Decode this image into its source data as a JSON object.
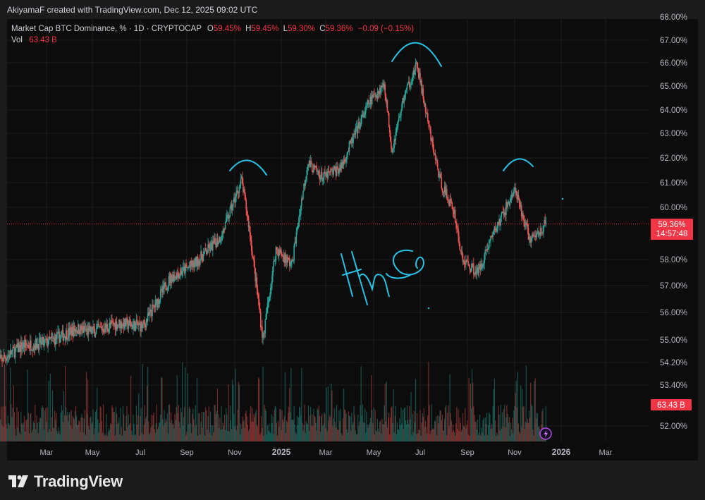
{
  "header": {
    "attribution": "AkiyamaF created with TradingView.com, Dec 12, 2025 09:02 UTC"
  },
  "legend": {
    "symbol": "Market Cap BTC Dominance, % · 1D · CRYPTOCAP",
    "o_label": "O",
    "o_value": "59.45%",
    "h_label": "H",
    "h_value": "59.45%",
    "l_label": "L",
    "l_value": "59.30%",
    "c_label": "C",
    "c_value": "59.36%",
    "change": "−0.09 (−0.15%)",
    "vol_label": "Vol",
    "vol_value": "63.43 B"
  },
  "footer": {
    "brand": "TradingView"
  },
  "chart_data": {
    "type": "candlestick",
    "title": "Market Cap BTC Dominance, % · 1D · CRYPTOCAP",
    "y_ticks": [
      "68.00%",
      "67.00%",
      "66.00%",
      "65.00%",
      "64.00%",
      "63.00%",
      "62.00%",
      "61.00%",
      "60.00%",
      "58.00%",
      "57.00%",
      "56.00%",
      "55.00%",
      "54.20%",
      "53.40%",
      "52.00%"
    ],
    "y_tick_values": [
      68.0,
      67.0,
      66.0,
      65.0,
      64.0,
      63.0,
      62.0,
      61.0,
      60.0,
      58.0,
      57.0,
      56.0,
      55.0,
      54.2,
      53.4,
      52.0
    ],
    "x_ticks": [
      "Mar",
      "May",
      "Jul",
      "Sep",
      "Nov",
      "2025",
      "Mar",
      "May",
      "Jul",
      "Sep",
      "Nov",
      "2026",
      "Mar"
    ],
    "x_tick_dates": [
      "2024-03-01",
      "2024-05-01",
      "2024-07-01",
      "2024-09-01",
      "2024-11-01",
      "2025-01-01",
      "2025-03-01",
      "2025-05-01",
      "2025-07-01",
      "2025-09-01",
      "2025-11-01",
      "2026-01-01",
      "2026-03-01"
    ],
    "bold_x_ticks": [
      "2025",
      "2026"
    ],
    "last_price_label": "59.36%",
    "countdown_label": "14:57:48",
    "last_volume_label": "63.43 B",
    "approx_close_path": [
      {
        "date": "2024-01-01",
        "close": 54.2
      },
      {
        "date": "2024-02-01",
        "close": 54.8
      },
      {
        "date": "2024-03-01",
        "close": 54.9
      },
      {
        "date": "2024-04-10",
        "close": 55.4
      },
      {
        "date": "2024-05-01",
        "close": 55.3
      },
      {
        "date": "2024-06-01",
        "close": 55.6
      },
      {
        "date": "2024-07-05",
        "close": 55.5
      },
      {
        "date": "2024-08-10",
        "close": 57.3
      },
      {
        "date": "2024-09-10",
        "close": 57.8
      },
      {
        "date": "2024-10-15",
        "close": 58.9
      },
      {
        "date": "2024-11-10",
        "close": 61.1
      },
      {
        "date": "2024-11-20",
        "close": 59.2
      },
      {
        "date": "2024-12-08",
        "close": 55.0
      },
      {
        "date": "2024-12-25",
        "close": 58.4
      },
      {
        "date": "2025-01-15",
        "close": 57.8
      },
      {
        "date": "2025-02-05",
        "close": 61.8
      },
      {
        "date": "2025-02-25",
        "close": 61.2
      },
      {
        "date": "2025-03-20",
        "close": 61.6
      },
      {
        "date": "2025-04-25",
        "close": 64.3
      },
      {
        "date": "2025-05-15",
        "close": 65.1
      },
      {
        "date": "2025-05-25",
        "close": 62.3
      },
      {
        "date": "2025-06-10",
        "close": 64.6
      },
      {
        "date": "2025-06-27",
        "close": 65.9
      },
      {
        "date": "2025-07-15",
        "close": 62.8
      },
      {
        "date": "2025-07-28",
        "close": 61.0
      },
      {
        "date": "2025-08-15",
        "close": 59.8
      },
      {
        "date": "2025-08-25",
        "close": 58.0
      },
      {
        "date": "2025-09-15",
        "close": 57.5
      },
      {
        "date": "2025-10-01",
        "close": 58.8
      },
      {
        "date": "2025-10-15",
        "close": 59.6
      },
      {
        "date": "2025-11-01",
        "close": 60.7
      },
      {
        "date": "2025-11-10",
        "close": 59.8
      },
      {
        "date": "2025-11-22",
        "close": 58.7
      },
      {
        "date": "2025-12-12",
        "close": 59.36
      }
    ],
    "annotations": [
      {
        "type": "arc",
        "position": "left shoulder",
        "date": "2024-11-05"
      },
      {
        "type": "arc",
        "position": "head",
        "date": "2025-06-27"
      },
      {
        "type": "arc",
        "position": "right shoulder",
        "date": "2025-10-25"
      },
      {
        "type": "handwritten_text",
        "text": "H&S",
        "date": "2025-06-01"
      }
    ]
  },
  "colors": {
    "up": "#26a69a",
    "down": "#ef5350",
    "last_price": "#f23645",
    "annotation": "#29c2e6",
    "panel_bg": "#0c0c0c",
    "page_bg": "#1b1b1b"
  }
}
